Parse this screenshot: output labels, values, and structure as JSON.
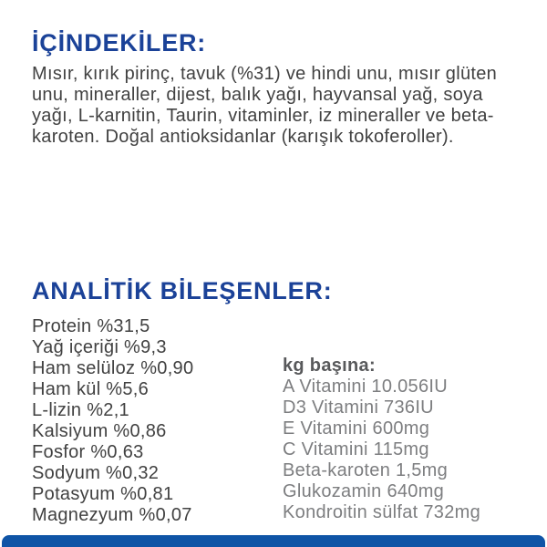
{
  "colors": {
    "heading_blue": "#1b4298",
    "body_text_gray": "#414141",
    "per_kg_heading_gray": "#58595b",
    "per_kg_text_gray": "#7d7e80",
    "bottom_bar_blue": "#0f54a6",
    "background": "#ffffff"
  },
  "ingredients": {
    "heading": "İÇİNDEKİLER:",
    "text": "Mısır, kırık pirinç, tavuk (%31) ve hindi unu, mısır glüten unu, mineraller, dijest, balık yağı, hayvansal yağ, soya yağı, L-karnitin, Taurin, vitaminler, iz mineraller ve beta-karoten. Doğal antioksidanlar (karışık tokoferoller)."
  },
  "analytics": {
    "heading": "ANALİTİK BİLEŞENLER:",
    "components": [
      "Protein %31,5",
      "Yağ içeriği %9,3",
      "Ham selüloz %0,90",
      "Ham kül %5,6",
      "L-lizin %2,1",
      "Kalsiyum %0,86",
      "Fosfor %0,63",
      "Sodyum %0,32",
      "Potasyum %0,81",
      "Magnezyum %0,07"
    ],
    "per_kg": {
      "heading": "kg başına:",
      "items": [
        "A Vitamini 10.056IU",
        "D3 Vitamini 736IU",
        "E Vitamini 600mg",
        "C Vitamini 115mg",
        "Beta-karoten 1,5mg",
        "Glukozamin 640mg",
        "Kondroitin sülfat 732mg"
      ]
    }
  }
}
